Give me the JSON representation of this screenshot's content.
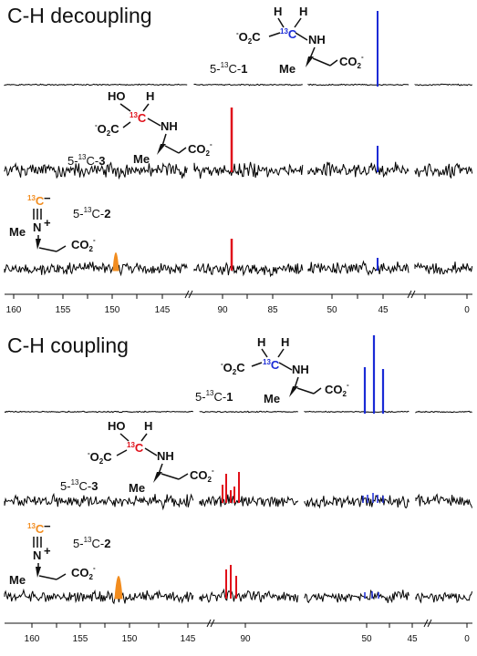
{
  "colors": {
    "blue": "#1a2bd6",
    "red": "#e0101a",
    "orange": "#f28c1e",
    "noise": "#000000"
  },
  "panels": [
    {
      "title": "C-H decoupling",
      "axis_ticks": [
        "160",
        "155",
        "150",
        "145",
        "90",
        "85",
        "50",
        "45",
        "0"
      ],
      "molecules": {
        "m1": {
          "ring13": "13",
          "C": "C",
          "H": "H",
          "coo": "O",
          "co2": "CO",
          "nh": "NH",
          "me": "Me",
          "co2r": "CO",
          "sub2": "2",
          "minus": "-"
        },
        "m3": {
          "ho": "HO",
          "h": "H",
          "ring13": "13",
          "C": "C",
          "nh": "NH",
          "me": "Me",
          "co2r": "CO",
          "sub2": "2",
          "minus": "-"
        },
        "m2": {
          "iso": "13",
          "C": "C",
          "minus": "−",
          "N": "N",
          "plus": "+",
          "me": "Me",
          "co2": "CO",
          "sub2": "2",
          "minus2": "-"
        }
      },
      "labels": {
        "c1": {
          "pre": "5-",
          "sup": "13",
          "main": "C-",
          "num": "1"
        },
        "c3": {
          "pre": "5-",
          "sup": "13",
          "main": "C-",
          "num": "3"
        },
        "c2": {
          "pre": "5-",
          "sup": "13",
          "main": "C-",
          "num": "2"
        }
      }
    },
    {
      "title": "C-H coupling",
      "axis_ticks": [
        "160",
        "155",
        "150",
        "145",
        "90",
        "50",
        "45",
        "0"
      ],
      "molecules": {
        "m1": {
          "ring13": "13",
          "C": "C",
          "H": "H",
          "coo": "O",
          "co2": "CO",
          "nh": "NH",
          "me": "Me",
          "co2r": "CO",
          "sub2": "2",
          "minus": "-"
        },
        "m3": {
          "ho": "HO",
          "h": "H",
          "ring13": "13",
          "C": "C",
          "nh": "NH",
          "me": "Me",
          "co2r": "CO",
          "sub2": "2",
          "minus": "-"
        },
        "m2": {
          "iso": "13",
          "C": "C",
          "minus": "−",
          "N": "N",
          "plus": "+",
          "me": "Me",
          "co2": "CO",
          "sub2": "2",
          "minus2": "-"
        }
      },
      "labels": {
        "c1": {
          "pre": "5-",
          "sup": "13",
          "main": "C-",
          "num": "1"
        },
        "c3": {
          "pre": "5-",
          "sup": "13",
          "main": "C-",
          "num": "3"
        },
        "c2": {
          "pre": "5-",
          "sup": "13",
          "main": "C-",
          "num": "2"
        }
      }
    }
  ]
}
